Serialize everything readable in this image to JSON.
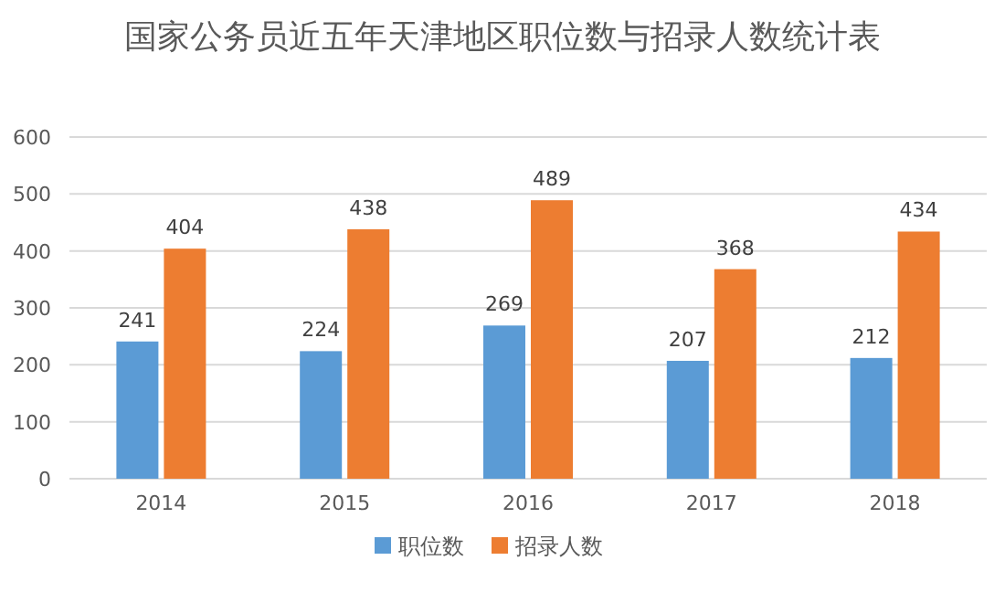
{
  "chart_data": {
    "type": "bar",
    "title": "国家公务员近五年天津地区职位数与招录人数统计表",
    "categories": [
      "2014",
      "2015",
      "2016",
      "2017",
      "2018"
    ],
    "series": [
      {
        "name": "职位数",
        "color": "#5b9bd5",
        "values": [
          241,
          224,
          269,
          207,
          212
        ]
      },
      {
        "name": "招录人数",
        "color": "#ed7d31",
        "values": [
          404,
          438,
          489,
          368,
          434
        ]
      }
    ],
    "ylim": [
      0,
      600
    ],
    "yticks": [
      0,
      100,
      200,
      300,
      400,
      500,
      600
    ],
    "grid": "y",
    "legend": "bottom",
    "data_labels": true
  }
}
